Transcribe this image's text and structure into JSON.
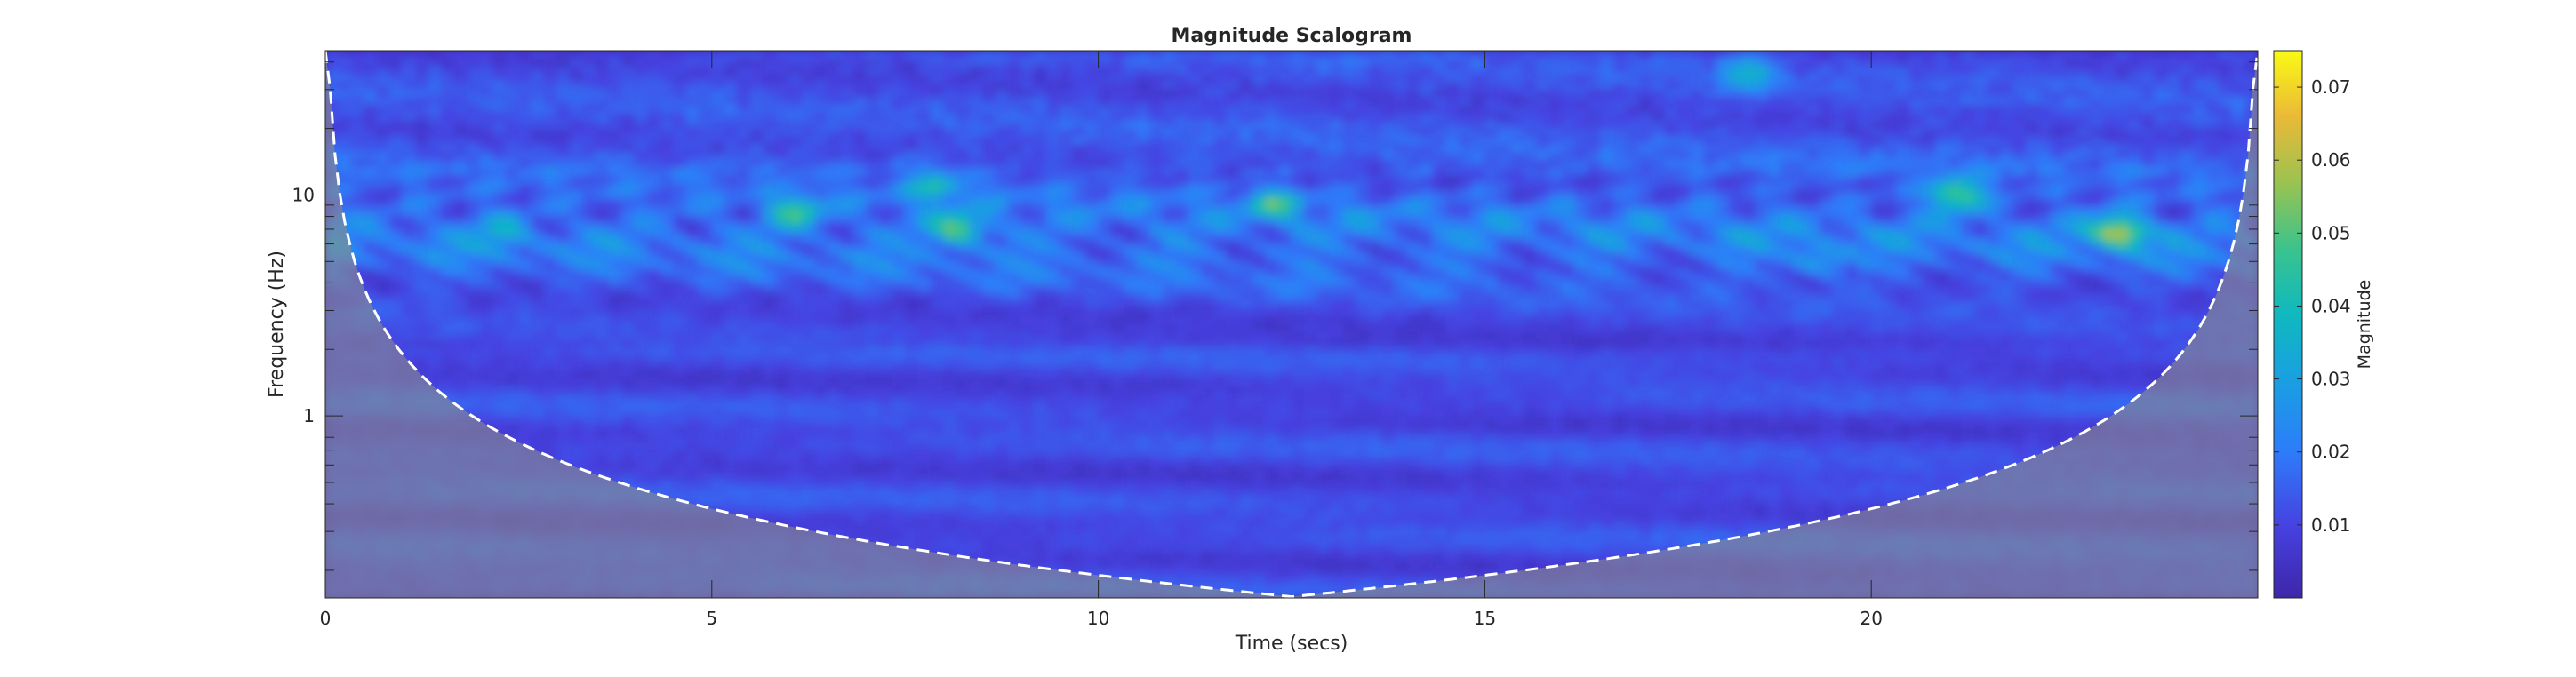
{
  "chart_data": {
    "type": "heatmap",
    "title": "Magnitude Scalogram",
    "xlabel": "Time (secs)",
    "ylabel": "Frequency (Hz)",
    "colorbar_label": "Magnitude",
    "xlim": [
      0,
      25
    ],
    "ylim": [
      0.15,
      45
    ],
    "y_scale": "log",
    "x_ticks": [
      0,
      5,
      10,
      15,
      20
    ],
    "x_tick_labels": [
      "0",
      "5",
      "10",
      "15",
      "20"
    ],
    "y_ticks": [
      1,
      10
    ],
    "y_tick_labels": [
      "1",
      "10"
    ],
    "color_limits": [
      0,
      0.075
    ],
    "colorbar_ticks": [
      0.01,
      0.02,
      0.03,
      0.04,
      0.05,
      0.06,
      0.07
    ],
    "colorbar_tick_labels": [
      "0.01",
      "0.02",
      "0.03",
      "0.04",
      "0.05",
      "0.06",
      "0.07"
    ],
    "colormap": "parula",
    "coi_color": "#ffffff",
    "coi_shade": "#8c8c8c",
    "highlights": [
      {
        "t": 23.2,
        "f": 6.8,
        "magnitude": 0.068
      },
      {
        "t": 21.1,
        "f": 10.0,
        "magnitude": 0.06
      },
      {
        "t": 8.2,
        "f": 7.0,
        "magnitude": 0.055
      },
      {
        "t": 6.1,
        "f": 8.3,
        "magnitude": 0.048
      },
      {
        "t": 12.3,
        "f": 9.0,
        "magnitude": 0.045
      },
      {
        "t": 18.4,
        "f": 35.0,
        "magnitude": 0.045
      },
      {
        "t": 7.9,
        "f": 11.0,
        "magnitude": 0.044
      },
      {
        "t": 19.3,
        "f": 5.0,
        "magnitude": 0.036
      },
      {
        "t": 2.3,
        "f": 6.8,
        "magnitude": 0.034
      }
    ]
  }
}
